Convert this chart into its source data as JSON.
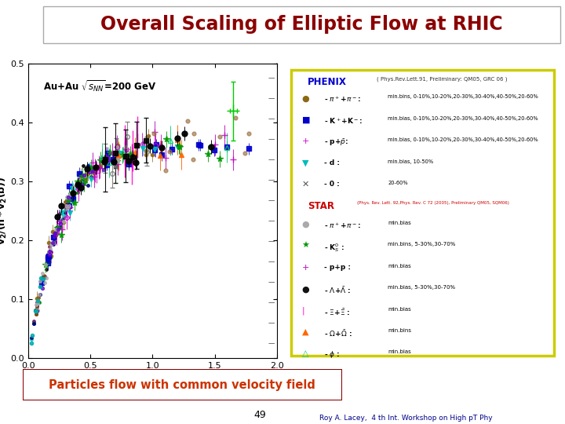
{
  "title": "Overall Scaling of Elliptic Flow at RHIC",
  "title_bg": "#E87820",
  "title_color": "#8B0000",
  "title_fontsize": 17,
  "bg_color": "#FFFFFF",
  "blue_bar_color": "#000080",
  "subtitle_box_text": "Particles flow with common velocity field",
  "subtitle_box_color": "#CC3300",
  "subtitle_box_border": "#8B0000",
  "page_number": "49",
  "footer_text": "Roy A. Lacey,  4 th Int. Workshop on High pT Phy",
  "xlim": [
    0,
    2
  ],
  "ylim": [
    0,
    0.5
  ],
  "xticks": [
    0,
    0.5,
    1,
    1.5,
    2
  ],
  "yticks": [
    0,
    0.1,
    0.2,
    0.3,
    0.4,
    0.5
  ],
  "phenix_color": "#0000CC",
  "star_color": "#CC0000"
}
